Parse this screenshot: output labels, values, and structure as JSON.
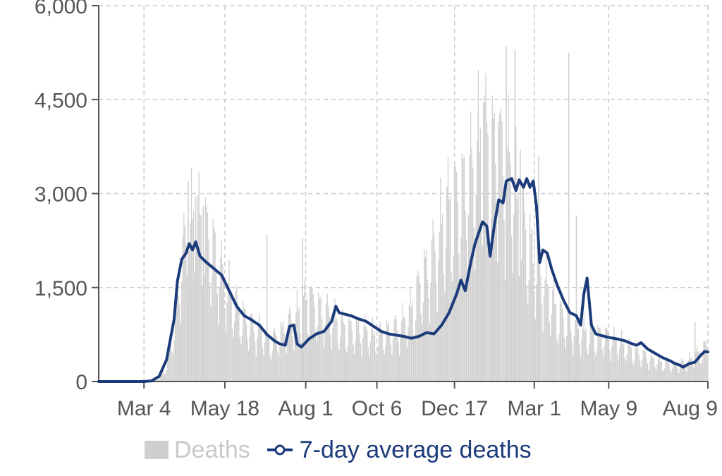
{
  "chart_data": {
    "type": "bar",
    "title": "",
    "xlabel": "",
    "ylabel": "",
    "ylim": [
      0,
      6000
    ],
    "y_ticks": [
      "0",
      "1,500",
      "3,000",
      "4,500",
      "6,000"
    ],
    "y_tick_values": [
      0,
      1500,
      3000,
      4500,
      6000
    ],
    "x_tick_labels": [
      "Mar 4",
      "May 18",
      "Aug 1",
      "Oct 6",
      "Dec 17",
      "Mar 1",
      "May 9",
      "Aug 9"
    ],
    "x_tick_dates": [
      "2020-03-04",
      "2020-05-18",
      "2020-08-01",
      "2020-10-06",
      "2020-12-17",
      "2021-03-01",
      "2021-05-09",
      "2021-08-09"
    ],
    "x_range": [
      "2020-01-22",
      "2021-08-09"
    ],
    "grid": true,
    "legend_position": "bottom",
    "series": [
      {
        "name": "Deaths",
        "kind": "bar",
        "color": "#cfcfcf",
        "points": [
          [
            "2020-01-22",
            0
          ],
          [
            "2020-03-04",
            0
          ],
          [
            "2020-03-18",
            40
          ],
          [
            "2020-03-25",
            250
          ],
          [
            "2020-04-01",
            900
          ],
          [
            "2020-04-07",
            1900
          ],
          [
            "2020-04-14",
            2500
          ],
          [
            "2020-04-21",
            2700
          ],
          [
            "2020-04-28",
            2500
          ],
          [
            "2020-05-05",
            2300
          ],
          [
            "2020-05-12",
            1900
          ],
          [
            "2020-05-19",
            1600
          ],
          [
            "2020-05-26",
            1300
          ],
          [
            "2020-06-02",
            1100
          ],
          [
            "2020-06-09",
            950
          ],
          [
            "2020-06-16",
            850
          ],
          [
            "2020-06-23",
            800
          ],
          [
            "2020-06-30",
            650
          ],
          [
            "2020-07-07",
            750
          ],
          [
            "2020-07-14",
            900
          ],
          [
            "2020-07-21",
            1050
          ],
          [
            "2020-07-28",
            1200
          ],
          [
            "2020-08-04",
            1300
          ],
          [
            "2020-08-11",
            1200
          ],
          [
            "2020-08-18",
            1150
          ],
          [
            "2020-08-25",
            1050
          ],
          [
            "2020-09-01",
            950
          ],
          [
            "2020-09-08",
            850
          ],
          [
            "2020-09-15",
            850
          ],
          [
            "2020-09-22",
            850
          ],
          [
            "2020-09-29",
            800
          ],
          [
            "2020-10-06",
            750
          ],
          [
            "2020-10-13",
            800
          ],
          [
            "2020-10-20",
            850
          ],
          [
            "2020-10-27",
            900
          ],
          [
            "2020-11-03",
            1050
          ],
          [
            "2020-11-10",
            1300
          ],
          [
            "2020-11-17",
            1700
          ],
          [
            "2020-11-24",
            1900
          ],
          [
            "2020-12-01",
            2300
          ],
          [
            "2020-12-08",
            2700
          ],
          [
            "2020-12-15",
            2900
          ],
          [
            "2020-12-22",
            3000
          ],
          [
            "2020-12-29",
            3200
          ],
          [
            "2021-01-05",
            3600
          ],
          [
            "2021-01-12",
            4000
          ],
          [
            "2021-01-19",
            3800
          ],
          [
            "2021-01-26",
            3700
          ],
          [
            "2021-02-02",
            3600
          ],
          [
            "2021-02-09",
            3400
          ],
          [
            "2021-02-16",
            2700
          ],
          [
            "2021-02-23",
            2300
          ],
          [
            "2021-03-02",
            2000
          ],
          [
            "2021-03-09",
            1700
          ],
          [
            "2021-03-16",
            1400
          ],
          [
            "2021-03-23",
            1100
          ],
          [
            "2021-03-30",
            1000
          ],
          [
            "2021-04-06",
            900
          ],
          [
            "2021-04-13",
            850
          ],
          [
            "2021-04-20",
            800
          ],
          [
            "2021-04-27",
            750
          ],
          [
            "2021-05-04",
            750
          ],
          [
            "2021-05-11",
            700
          ],
          [
            "2021-05-18",
            650
          ],
          [
            "2021-05-25",
            600
          ],
          [
            "2021-06-01",
            500
          ],
          [
            "2021-06-08",
            450
          ],
          [
            "2021-06-15",
            400
          ],
          [
            "2021-06-22",
            350
          ],
          [
            "2021-06-29",
            300
          ],
          [
            "2021-07-06",
            280
          ],
          [
            "2021-07-13",
            280
          ],
          [
            "2021-07-20",
            320
          ],
          [
            "2021-07-27",
            400
          ],
          [
            "2021-08-03",
            500
          ],
          [
            "2021-08-09",
            600
          ]
        ],
        "spikes": [
          [
            "2020-04-14",
            3200
          ],
          [
            "2020-04-21",
            2950
          ],
          [
            "2020-04-28",
            2800
          ],
          [
            "2020-06-26",
            2350
          ],
          [
            "2020-07-29",
            2300
          ],
          [
            "2020-08-05",
            1500
          ],
          [
            "2020-12-10",
            3100
          ],
          [
            "2021-01-08",
            4300
          ],
          [
            "2021-01-13",
            4450
          ],
          [
            "2021-01-21",
            4200
          ],
          [
            "2021-01-27",
            4150
          ],
          [
            "2021-02-03",
            5350
          ],
          [
            "2021-02-11",
            5300
          ],
          [
            "2021-02-16",
            3700
          ],
          [
            "2021-03-05",
            3600
          ],
          [
            "2021-04-02",
            5250
          ],
          [
            "2021-04-09",
            2650
          ],
          [
            "2021-07-28",
            950
          ]
        ]
      },
      {
        "name": "7-day average deaths",
        "kind": "line",
        "color": "#1b3b7a",
        "points": [
          [
            "2020-01-22",
            0
          ],
          [
            "2020-03-04",
            0
          ],
          [
            "2020-03-11",
            10
          ],
          [
            "2020-03-18",
            80
          ],
          [
            "2020-03-25",
            350
          ],
          [
            "2020-04-01",
            1000
          ],
          [
            "2020-04-04",
            1600
          ],
          [
            "2020-04-08",
            1950
          ],
          [
            "2020-04-12",
            2050
          ],
          [
            "2020-04-15",
            2200
          ],
          [
            "2020-04-18",
            2100
          ],
          [
            "2020-04-21",
            2230
          ],
          [
            "2020-04-25",
            2000
          ],
          [
            "2020-05-01",
            1900
          ],
          [
            "2020-05-08",
            1800
          ],
          [
            "2020-05-15",
            1700
          ],
          [
            "2020-05-22",
            1450
          ],
          [
            "2020-05-29",
            1200
          ],
          [
            "2020-06-05",
            1050
          ],
          [
            "2020-06-12",
            980
          ],
          [
            "2020-06-19",
            900
          ],
          [
            "2020-06-26",
            750
          ],
          [
            "2020-07-03",
            650
          ],
          [
            "2020-07-08",
            600
          ],
          [
            "2020-07-13",
            580
          ],
          [
            "2020-07-17",
            880
          ],
          [
            "2020-07-21",
            900
          ],
          [
            "2020-07-24",
            600
          ],
          [
            "2020-07-28",
            550
          ],
          [
            "2020-08-04",
            680
          ],
          [
            "2020-08-11",
            760
          ],
          [
            "2020-08-18",
            800
          ],
          [
            "2020-08-25",
            960
          ],
          [
            "2020-08-29",
            1200
          ],
          [
            "2020-09-01",
            1100
          ],
          [
            "2020-09-05",
            1080
          ],
          [
            "2020-09-12",
            1050
          ],
          [
            "2020-09-19",
            1000
          ],
          [
            "2020-09-26",
            960
          ],
          [
            "2020-10-03",
            880
          ],
          [
            "2020-10-10",
            800
          ],
          [
            "2020-10-17",
            760
          ],
          [
            "2020-10-24",
            740
          ],
          [
            "2020-10-31",
            720
          ],
          [
            "2020-11-07",
            690
          ],
          [
            "2020-11-14",
            720
          ],
          [
            "2020-11-21",
            780
          ],
          [
            "2020-11-28",
            760
          ],
          [
            "2020-12-05",
            900
          ],
          [
            "2020-12-12",
            1100
          ],
          [
            "2020-12-19",
            1400
          ],
          [
            "2020-12-23",
            1620
          ],
          [
            "2020-12-27",
            1450
          ],
          [
            "2021-01-01",
            1900
          ],
          [
            "2021-01-05",
            2200
          ],
          [
            "2021-01-09",
            2400
          ],
          [
            "2021-01-12",
            2550
          ],
          [
            "2021-01-16",
            2480
          ],
          [
            "2021-01-19",
            2000
          ],
          [
            "2021-01-23",
            2500
          ],
          [
            "2021-01-27",
            2900
          ],
          [
            "2021-01-31",
            2850
          ],
          [
            "2021-02-03",
            3200
          ],
          [
            "2021-02-08",
            3240
          ],
          [
            "2021-02-12",
            3050
          ],
          [
            "2021-02-15",
            3220
          ],
          [
            "2021-02-19",
            3100
          ],
          [
            "2021-02-22",
            3240
          ],
          [
            "2021-02-25",
            3100
          ],
          [
            "2021-02-28",
            3200
          ],
          [
            "2021-03-03",
            2800
          ],
          [
            "2021-03-06",
            1900
          ],
          [
            "2021-03-09",
            2100
          ],
          [
            "2021-03-13",
            2050
          ],
          [
            "2021-03-17",
            1800
          ],
          [
            "2021-03-22",
            1550
          ],
          [
            "2021-03-28",
            1300
          ],
          [
            "2021-04-03",
            1100
          ],
          [
            "2021-04-09",
            1050
          ],
          [
            "2021-04-13",
            900
          ],
          [
            "2021-04-16",
            1400
          ],
          [
            "2021-04-19",
            1650
          ],
          [
            "2021-04-23",
            900
          ],
          [
            "2021-04-27",
            760
          ],
          [
            "2021-05-03",
            730
          ],
          [
            "2021-05-10",
            700
          ],
          [
            "2021-05-17",
            680
          ],
          [
            "2021-05-24",
            650
          ],
          [
            "2021-05-31",
            600
          ],
          [
            "2021-06-04",
            580
          ],
          [
            "2021-06-08",
            620
          ],
          [
            "2021-06-14",
            520
          ],
          [
            "2021-06-21",
            450
          ],
          [
            "2021-06-28",
            380
          ],
          [
            "2021-07-05",
            330
          ],
          [
            "2021-07-09",
            290
          ],
          [
            "2021-07-14",
            260
          ],
          [
            "2021-07-17",
            230
          ],
          [
            "2021-07-22",
            280
          ],
          [
            "2021-07-28",
            310
          ],
          [
            "2021-08-03",
            430
          ],
          [
            "2021-08-06",
            480
          ],
          [
            "2021-08-09",
            470
          ]
        ]
      }
    ]
  }
}
